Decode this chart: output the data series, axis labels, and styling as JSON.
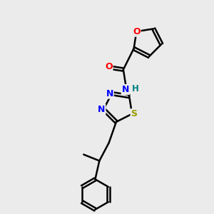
{
  "background_color": "#ebebeb",
  "bond_color": "#000000",
  "atom_colors": {
    "O": "#ff0000",
    "N": "#0000ff",
    "S": "#999900",
    "H": "#008080",
    "C": "#000000"
  },
  "figsize": [
    3.0,
    3.0
  ],
  "dpi": 100
}
